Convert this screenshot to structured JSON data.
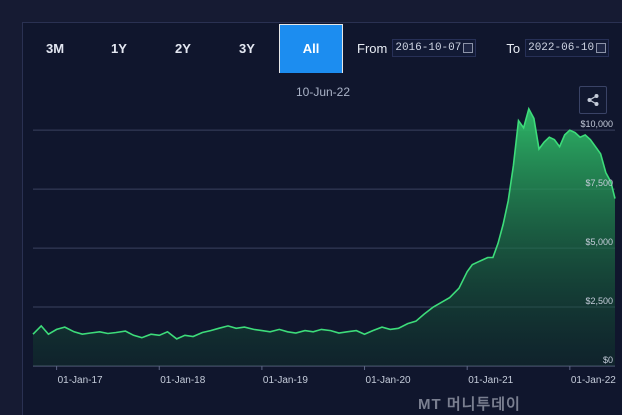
{
  "toolbar": {
    "ranges": [
      "3M",
      "1Y",
      "2Y",
      "3Y",
      "All"
    ],
    "active_range": "All",
    "from_label": "From",
    "from_value": "2016-10-07",
    "to_label": "To",
    "to_value": "2022-06-10"
  },
  "chart_header": {
    "date": "10-Jun-22"
  },
  "icons": {
    "share": "share-icon",
    "calendar": "calendar-icon"
  },
  "colors": {
    "accent": "#1c8df0",
    "line": "#3ddc7a",
    "background": "#10162d"
  },
  "watermark": "MT 머니투데이",
  "chart_data": {
    "type": "area",
    "title": "",
    "xlabel": "",
    "ylabel": "",
    "ylim": [
      0,
      12000
    ],
    "y_ticks": [
      "$0",
      "$2,500",
      "$5,000",
      "$7,500",
      "$10,000"
    ],
    "y_tick_values": [
      0,
      2500,
      5000,
      7500,
      10000
    ],
    "x_tick_labels": [
      "01-Jan-17",
      "01-Jan-18",
      "01-Jan-19",
      "01-Jan-20",
      "01-Jan-21",
      "01-Jan-22"
    ],
    "x_tick_values": [
      2017.0,
      2018.0,
      2019.0,
      2020.0,
      2021.0,
      2022.0
    ],
    "xlim": [
      2016.77,
      2022.44
    ],
    "grid": true,
    "series": [
      {
        "x": [
          2016.77,
          2016.85,
          2016.92,
          2017.0,
          2017.08,
          2017.17,
          2017.25,
          2017.33,
          2017.42,
          2017.5,
          2017.58,
          2017.67,
          2017.75,
          2017.83,
          2017.92,
          2018.0,
          2018.08,
          2018.17,
          2018.25,
          2018.33,
          2018.42,
          2018.5,
          2018.58,
          2018.67,
          2018.75,
          2018.83,
          2018.92,
          2019.0,
          2019.08,
          2019.17,
          2019.25,
          2019.33,
          2019.42,
          2019.5,
          2019.58,
          2019.67,
          2019.75,
          2019.83,
          2019.92,
          2020.0,
          2020.08,
          2020.17,
          2020.25,
          2020.33,
          2020.42,
          2020.5,
          2020.58,
          2020.67,
          2020.75,
          2020.83,
          2020.92,
          2021.0,
          2021.05,
          2021.1,
          2021.15,
          2021.2,
          2021.25,
          2021.3,
          2021.35,
          2021.4,
          2021.45,
          2021.5,
          2021.55,
          2021.6,
          2021.65,
          2021.7,
          2021.75,
          2021.8,
          2021.85,
          2021.9,
          2021.95,
          2022.0,
          2022.05,
          2022.1,
          2022.15,
          2022.2,
          2022.25,
          2022.3,
          2022.35,
          2022.4,
          2022.44
        ],
        "values": [
          1350,
          1700,
          1350,
          1550,
          1650,
          1450,
          1350,
          1400,
          1450,
          1380,
          1420,
          1480,
          1300,
          1200,
          1350,
          1300,
          1450,
          1150,
          1300,
          1250,
          1420,
          1500,
          1600,
          1700,
          1600,
          1650,
          1550,
          1500,
          1450,
          1550,
          1450,
          1400,
          1500,
          1450,
          1550,
          1500,
          1400,
          1450,
          1500,
          1350,
          1500,
          1650,
          1550,
          1600,
          1800,
          1900,
          2200,
          2500,
          2700,
          2900,
          3300,
          4000,
          4300,
          4400,
          4500,
          4600,
          4600,
          5200,
          6000,
          7000,
          8500,
          10400,
          10100,
          10900,
          10500,
          9200,
          9500,
          9700,
          9600,
          9300,
          9800,
          10000,
          9900,
          9700,
          9800,
          9600,
          9300,
          9000,
          8200,
          7800,
          7100
        ]
      }
    ]
  }
}
